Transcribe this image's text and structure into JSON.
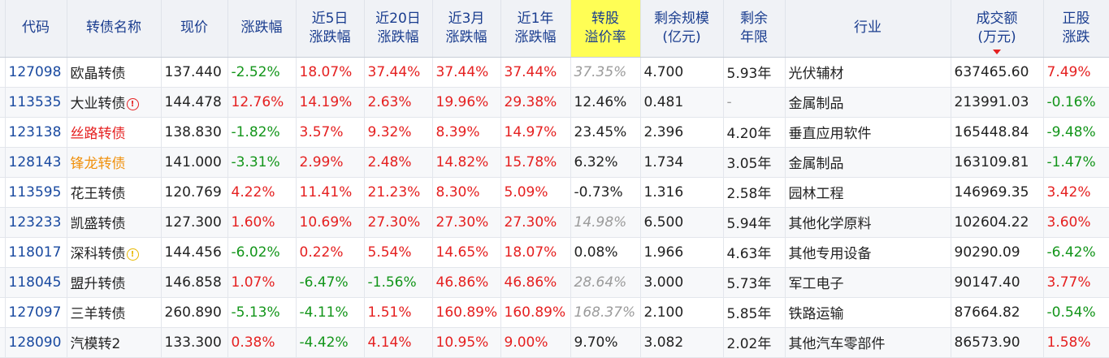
{
  "headers": {
    "code": "代码",
    "name": "转债名称",
    "price": "现价",
    "change": "涨跌幅",
    "d5_l1": "近5日",
    "d5_l2": "涨跌幅",
    "d20_l1": "近20日",
    "d20_l2": "涨跌幅",
    "m3_l1": "近3月",
    "m3_l2": "涨跌幅",
    "y1_l1": "近1年",
    "y1_l2": "涨跌幅",
    "prem_l1": "转股",
    "prem_l2": "溢价率",
    "scale_l1": "剩余规模",
    "scale_l2": "(亿元)",
    "term_l1": "剩余",
    "term_l2": "年限",
    "industry": "行业",
    "turnover_l1": "成交额",
    "turnover_l2": "(万元)",
    "stock_l1": "正股",
    "stock_l2": "涨跌"
  },
  "rows": [
    {
      "code": "127098",
      "name": "欧晶转债",
      "name_color": "default",
      "warn": "",
      "price": "137.440",
      "change": "-2.52%",
      "d5": "18.07%",
      "d20": "37.44%",
      "m3": "37.44%",
      "y1": "37.44%",
      "prem": "37.35%",
      "prem_style": "grey-italic",
      "scale": "4.700",
      "term": "5.93年",
      "industry": "光伏辅材",
      "turnover": "637465.60",
      "stock": "7.49%"
    },
    {
      "code": "113535",
      "name": "大业转债",
      "name_color": "default",
      "warn": "!",
      "warn_color": "red",
      "price": "144.478",
      "change": "12.76%",
      "d5": "14.19%",
      "d20": "2.63%",
      "m3": "19.96%",
      "y1": "29.38%",
      "prem": "12.46%",
      "prem_style": "normal",
      "scale": "0.481",
      "term": "-",
      "industry": "金属制品",
      "turnover": "213991.03",
      "stock": "-0.16%"
    },
    {
      "code": "123138",
      "name": "丝路转债",
      "name_color": "red",
      "warn": "",
      "price": "138.830",
      "change": "-1.82%",
      "d5": "3.57%",
      "d20": "9.32%",
      "m3": "8.39%",
      "y1": "14.97%",
      "prem": "23.45%",
      "prem_style": "normal",
      "scale": "2.396",
      "term": "4.20年",
      "industry": "垂直应用软件",
      "turnover": "165448.84",
      "stock": "-9.48%"
    },
    {
      "code": "128143",
      "name": "锋龙转债",
      "name_color": "orange",
      "warn": "",
      "price": "141.000",
      "change": "-3.31%",
      "d5": "2.99%",
      "d20": "2.48%",
      "m3": "14.82%",
      "y1": "15.78%",
      "prem": "6.32%",
      "prem_style": "normal",
      "scale": "1.734",
      "term": "3.05年",
      "industry": "金属制品",
      "turnover": "163109.81",
      "stock": "-1.47%"
    },
    {
      "code": "113595",
      "name": "花王转债",
      "name_color": "default",
      "warn": "",
      "price": "120.769",
      "change": "4.22%",
      "d5": "11.41%",
      "d20": "21.23%",
      "m3": "8.30%",
      "y1": "5.09%",
      "prem": "-0.73%",
      "prem_style": "normal",
      "scale": "1.316",
      "term": "2.58年",
      "industry": "园林工程",
      "turnover": "146969.35",
      "stock": "3.42%"
    },
    {
      "code": "123233",
      "name": "凯盛转债",
      "name_color": "default",
      "warn": "",
      "price": "127.300",
      "change": "1.60%",
      "d5": "10.69%",
      "d20": "27.30%",
      "m3": "27.30%",
      "y1": "27.30%",
      "prem": "14.98%",
      "prem_style": "grey-italic",
      "scale": "6.500",
      "term": "5.94年",
      "industry": "其他化学原料",
      "turnover": "102604.22",
      "stock": "3.60%"
    },
    {
      "code": "118017",
      "name": "深科转债",
      "name_color": "default",
      "warn": "!",
      "warn_color": "yellow",
      "price": "144.456",
      "change": "-6.02%",
      "d5": "0.22%",
      "d20": "5.54%",
      "m3": "14.65%",
      "y1": "18.07%",
      "prem": "0.08%",
      "prem_style": "normal",
      "scale": "1.966",
      "term": "4.63年",
      "industry": "其他专用设备",
      "turnover": "90290.09",
      "stock": "-6.42%"
    },
    {
      "code": "118045",
      "name": "盟升转债",
      "name_color": "default",
      "warn": "",
      "price": "146.858",
      "change": "1.07%",
      "d5": "-6.47%",
      "d20": "-1.56%",
      "m3": "46.86%",
      "y1": "46.86%",
      "prem": "28.64%",
      "prem_style": "grey-italic",
      "scale": "3.000",
      "term": "5.73年",
      "industry": "军工电子",
      "turnover": "90147.40",
      "stock": "3.77%"
    },
    {
      "code": "127097",
      "name": "三羊转债",
      "name_color": "default",
      "warn": "",
      "price": "260.890",
      "change": "-5.13%",
      "d5": "-4.11%",
      "d20": "1.51%",
      "m3": "160.89%",
      "y1": "160.89%",
      "prem": "168.37%",
      "prem_style": "grey-italic",
      "scale": "2.100",
      "term": "5.85年",
      "industry": "铁路运输",
      "turnover": "87664.82",
      "stock": "-0.54%"
    },
    {
      "code": "128090",
      "name": "汽模转2",
      "name_color": "default",
      "warn": "",
      "price": "133.300",
      "change": "0.38%",
      "d5": "-4.42%",
      "d20": "4.14%",
      "m3": "10.95%",
      "y1": "9.00%",
      "prem": "9.70%",
      "prem_style": "normal",
      "scale": "3.082",
      "term": "2.02年",
      "industry": "其他汽车零部件",
      "turnover": "86573.90",
      "stock": "1.58%"
    }
  ],
  "colors": {
    "up": "#e52020",
    "down": "#13951a",
    "code": "#1a4aa0",
    "highlight": "#fffe55",
    "header_bg": "#f0f2f6"
  },
  "sort": {
    "column": "turnover",
    "direction": "desc",
    "icon": "sort-desc-icon"
  }
}
